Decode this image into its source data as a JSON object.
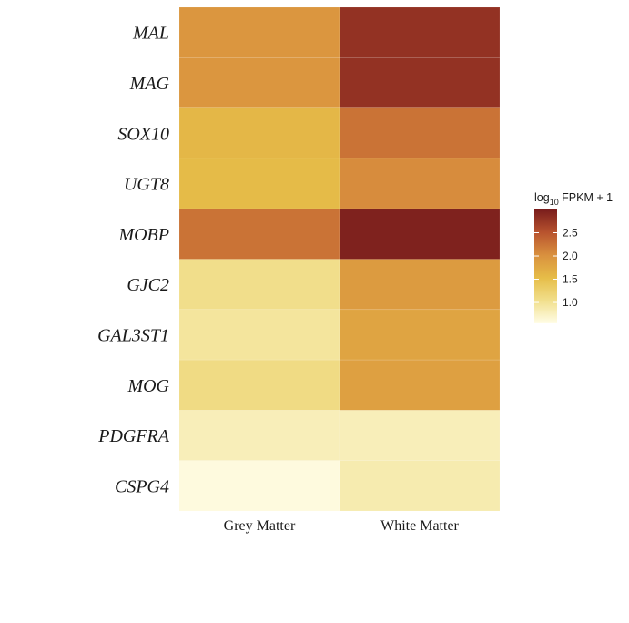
{
  "chart_data": {
    "type": "heatmap",
    "rows": [
      "MAL",
      "MAG",
      "SOX10",
      "UGT8",
      "MOBP",
      "GJC2",
      "GAL3ST1",
      "MOG",
      "PDGFRA",
      "CSPG4"
    ],
    "columns": [
      "Grey Matter",
      "White Matter"
    ],
    "values": [
      [
        1.95,
        2.8
      ],
      [
        1.95,
        2.8
      ],
      [
        1.6,
        2.25
      ],
      [
        1.55,
        2.05
      ],
      [
        2.25,
        2.95
      ],
      [
        1.05,
        1.9
      ],
      [
        0.95,
        1.8
      ],
      [
        1.1,
        1.85
      ],
      [
        0.8,
        0.8
      ],
      [
        0.6,
        0.85
      ]
    ],
    "legend": {
      "title_prefix": "log",
      "title_subscript": "10",
      "title_suffix": " FPKM + 1",
      "ticks": [
        1.0,
        1.5,
        2.0,
        2.5
      ],
      "tick_labels": [
        "1.0",
        "1.5",
        "2.0",
        "2.5"
      ],
      "range": [
        0.55,
        3.0
      ],
      "colors": [
        "#fffde7",
        "#f1df8c",
        "#e6bd48",
        "#d9903e",
        "#b8532e",
        "#791c1c"
      ],
      "placement": "right"
    }
  }
}
